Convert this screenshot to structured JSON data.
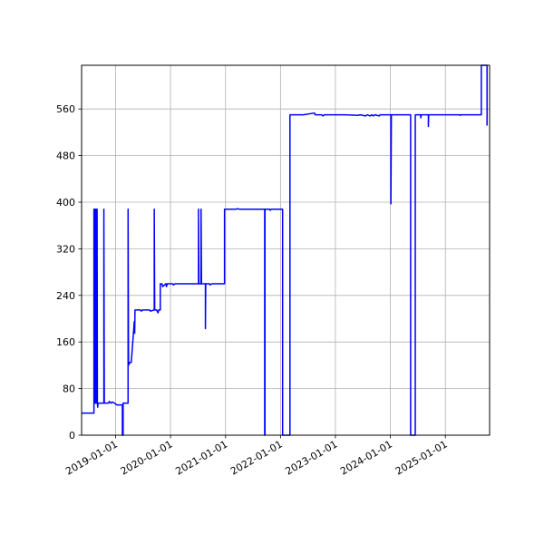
{
  "chart_data": {
    "type": "line",
    "title": "",
    "xlabel": "",
    "ylabel": "",
    "grid": true,
    "xlim": [
      "2018-05-20",
      "2025-10-22"
    ],
    "ylim": [
      0,
      635
    ],
    "yticks": [
      0,
      80,
      160,
      240,
      320,
      400,
      480,
      560
    ],
    "ytick_labels": [
      "0",
      "80",
      "160",
      "240",
      "320",
      "400",
      "480",
      "560"
    ],
    "xticks": [
      "2019-01-01",
      "2020-01-01",
      "2021-01-01",
      "2022-01-01",
      "2023-01-01",
      "2024-01-01",
      "2025-01-01"
    ],
    "xtick_labels": [
      "2019-01-01",
      "2020-01-01",
      "2021-01-01",
      "2022-01-01",
      "2023-01-01",
      "2024-01-01",
      "2025-01-01"
    ],
    "series": [
      {
        "color": "#0000ff",
        "points": [
          [
            "2018-05-20",
            38
          ],
          [
            "2018-08-10",
            38
          ],
          [
            "2018-08-10",
            388
          ],
          [
            "2018-08-12",
            55
          ],
          [
            "2018-08-14",
            388
          ],
          [
            "2018-08-17",
            55
          ],
          [
            "2018-08-20",
            388
          ],
          [
            "2018-08-23",
            55
          ],
          [
            "2018-08-26",
            388
          ],
          [
            "2018-08-28",
            55
          ],
          [
            "2018-08-31",
            388
          ],
          [
            "2018-09-02",
            55
          ],
          [
            "2018-09-04",
            48
          ],
          [
            "2018-09-06",
            55
          ],
          [
            "2018-10-15",
            55
          ],
          [
            "2018-10-15",
            388
          ],
          [
            "2018-10-18",
            55
          ],
          [
            "2018-11-15",
            55
          ],
          [
            "2018-11-20",
            58
          ],
          [
            "2018-12-01",
            55
          ],
          [
            "2018-12-10",
            57
          ],
          [
            "2018-12-25",
            55
          ],
          [
            "2019-01-10",
            52
          ],
          [
            "2019-02-15",
            52
          ],
          [
            "2019-02-15",
            0
          ],
          [
            "2019-02-20",
            0
          ],
          [
            "2019-02-20",
            55
          ],
          [
            "2019-03-25",
            55
          ],
          [
            "2019-03-25",
            388
          ],
          [
            "2019-03-28",
            120
          ],
          [
            "2019-04-05",
            125
          ],
          [
            "2019-04-15",
            125
          ],
          [
            "2019-05-01",
            180
          ],
          [
            "2019-05-05",
            195
          ],
          [
            "2019-05-08",
            175
          ],
          [
            "2019-05-10",
            215
          ],
          [
            "2019-06-15",
            215
          ],
          [
            "2019-06-20",
            213
          ],
          [
            "2019-07-01",
            215
          ],
          [
            "2019-08-15",
            215
          ],
          [
            "2019-08-20",
            213
          ],
          [
            "2019-09-15",
            215
          ],
          [
            "2019-09-15",
            388
          ],
          [
            "2019-09-18",
            215
          ],
          [
            "2019-10-01",
            215
          ],
          [
            "2019-10-10",
            210
          ],
          [
            "2019-10-15",
            215
          ],
          [
            "2019-10-25",
            215
          ],
          [
            "2019-10-25",
            260
          ],
          [
            "2019-11-05",
            260
          ],
          [
            "2019-11-10",
            255
          ],
          [
            "2019-12-01",
            260
          ],
          [
            "2019-12-05",
            255
          ],
          [
            "2019-12-10",
            260
          ],
          [
            "2020-01-15",
            260
          ],
          [
            "2020-01-20",
            258
          ],
          [
            "2020-02-01",
            260
          ],
          [
            "2020-07-05",
            260
          ],
          [
            "2020-07-05",
            388
          ],
          [
            "2020-07-08",
            260
          ],
          [
            "2020-07-22",
            260
          ],
          [
            "2020-07-22",
            388
          ],
          [
            "2020-07-25",
            260
          ],
          [
            "2020-08-20",
            260
          ],
          [
            "2020-08-20",
            183
          ],
          [
            "2020-08-22",
            260
          ],
          [
            "2020-09-15",
            260
          ],
          [
            "2020-09-20",
            258
          ],
          [
            "2020-10-01",
            260
          ],
          [
            "2020-12-25",
            260
          ],
          [
            "2020-12-25",
            388
          ],
          [
            "2021-01-20",
            388
          ],
          [
            "2021-03-15",
            388
          ],
          [
            "2021-03-20",
            389
          ],
          [
            "2021-04-01",
            388
          ],
          [
            "2021-09-18",
            388
          ],
          [
            "2021-09-18",
            0
          ],
          [
            "2021-09-20",
            0
          ],
          [
            "2021-09-20",
            388
          ],
          [
            "2021-10-20",
            388
          ],
          [
            "2021-10-25",
            386
          ],
          [
            "2021-11-01",
            388
          ],
          [
            "2021-12-05",
            388
          ],
          [
            "2022-01-15",
            388
          ],
          [
            "2022-01-15",
            0
          ],
          [
            "2022-03-05",
            0
          ],
          [
            "2022-03-05",
            550
          ],
          [
            "2022-06-01",
            550
          ],
          [
            "2022-08-15",
            553
          ],
          [
            "2022-08-20",
            550
          ],
          [
            "2022-10-01",
            550
          ],
          [
            "2022-10-10",
            548
          ],
          [
            "2022-10-20",
            550
          ],
          [
            "2023-03-01",
            550
          ],
          [
            "2023-06-01",
            549
          ],
          [
            "2023-06-15",
            550
          ],
          [
            "2023-07-20",
            548
          ],
          [
            "2023-08-01",
            550
          ],
          [
            "2023-08-20",
            548
          ],
          [
            "2023-08-30",
            550
          ],
          [
            "2023-09-10",
            548
          ],
          [
            "2023-09-20",
            550
          ],
          [
            "2023-10-20",
            548
          ],
          [
            "2023-10-25",
            550
          ],
          [
            "2024-01-05",
            550
          ],
          [
            "2024-01-05",
            397
          ],
          [
            "2024-01-08",
            550
          ],
          [
            "2024-05-15",
            550
          ],
          [
            "2024-05-15",
            0
          ],
          [
            "2024-06-15",
            0
          ],
          [
            "2024-06-15",
            550
          ],
          [
            "2024-07-20",
            550
          ],
          [
            "2024-07-22",
            545
          ],
          [
            "2024-07-25",
            550
          ],
          [
            "2024-09-10",
            550
          ],
          [
            "2024-09-10",
            530
          ],
          [
            "2024-09-12",
            550
          ],
          [
            "2025-04-05",
            550
          ],
          [
            "2025-04-10",
            549
          ],
          [
            "2025-04-15",
            550
          ],
          [
            "2025-08-28",
            550
          ],
          [
            "2025-08-28",
            635
          ],
          [
            "2025-10-05",
            635
          ],
          [
            "2025-10-05",
            532
          ],
          [
            "2025-10-07",
            532
          ]
        ]
      }
    ]
  }
}
